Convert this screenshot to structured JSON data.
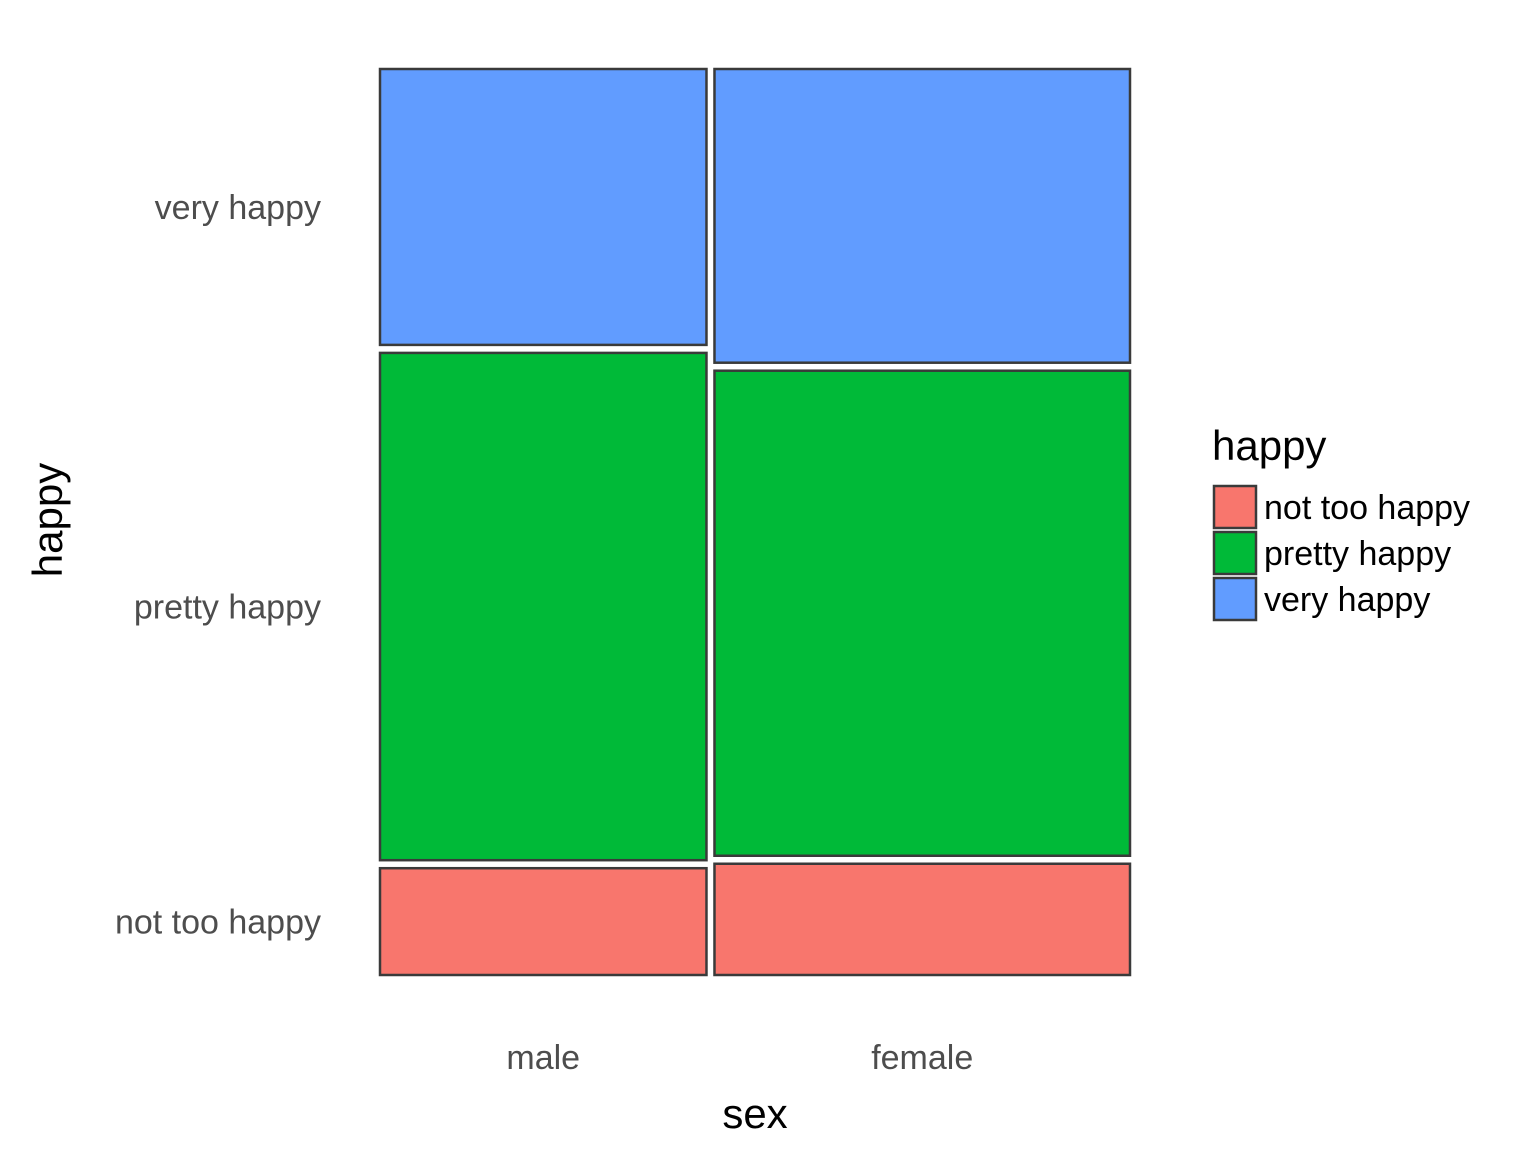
{
  "chart_data": {
    "type": "mosaic",
    "x_variable": "sex",
    "y_variable": "happy",
    "xlabel": "sex",
    "ylabel": "happy",
    "categories": [
      "male",
      "female"
    ],
    "category_share": [
      0.44,
      0.56
    ],
    "levels": [
      "not too happy",
      "pretty happy",
      "very happy"
    ],
    "series": [
      {
        "name": "not too happy",
        "color": "#F8766D",
        "values": [
          0.12,
          0.125
        ]
      },
      {
        "name": "pretty happy",
        "color": "#00BA38",
        "values": [
          0.57,
          0.545
        ]
      },
      {
        "name": "very happy",
        "color": "#619CFF",
        "values": [
          0.31,
          0.33
        ]
      }
    ],
    "y_tick_labels": [
      "not too happy",
      "pretty happy",
      "very happy"
    ],
    "x_tick_labels": [
      "male",
      "female"
    ],
    "legend": {
      "title": "happy",
      "position": "right",
      "entries": [
        "not too happy",
        "pretty happy",
        "very happy"
      ]
    },
    "grid": false
  }
}
